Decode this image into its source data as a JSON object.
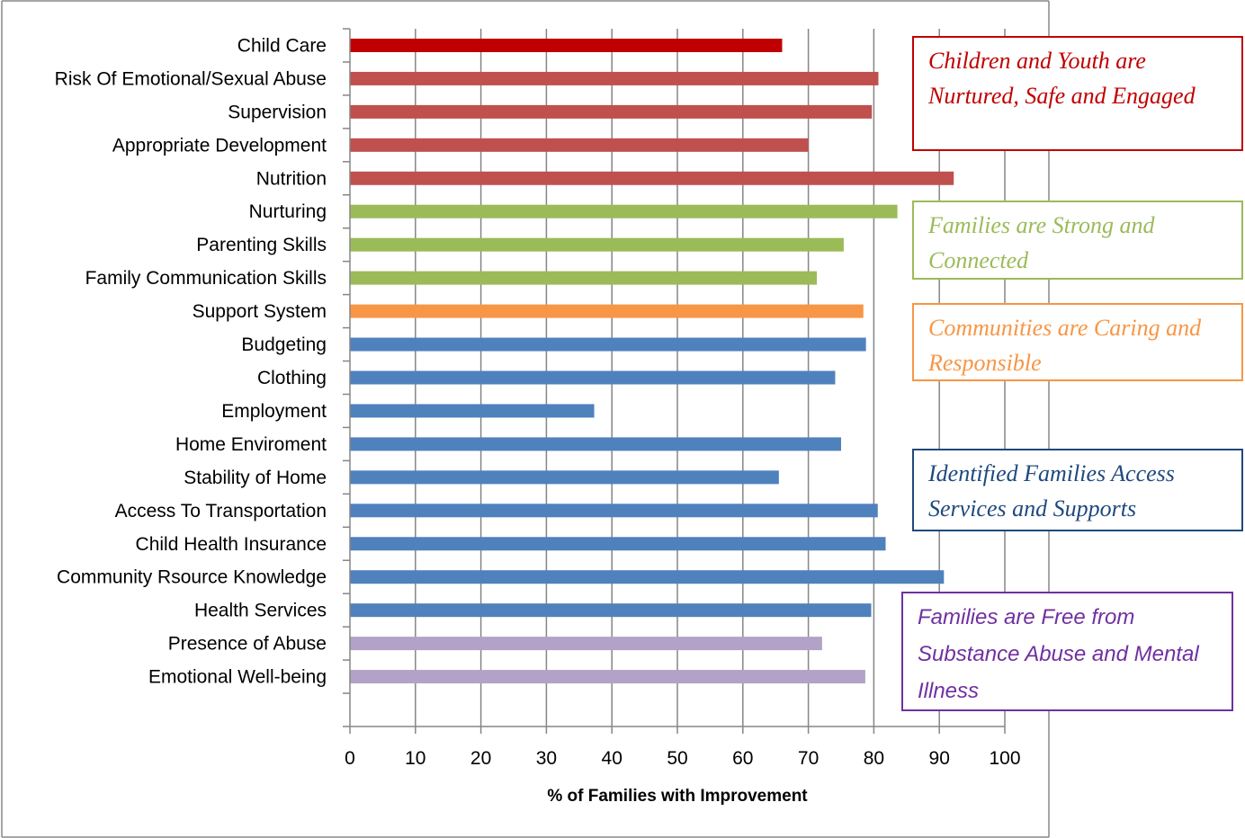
{
  "colors": {
    "children_youth": "#c0504d",
    "children_youth_highlight": "#c00000",
    "families_strong": "#9bbb59",
    "communities": "#f79646",
    "identified_families": "#4f81bd",
    "substance_abuse": "#b3a2c7",
    "box_children_youth": "#c00000",
    "box_families_strong": "#9bbb59",
    "box_communities": "#f79646",
    "box_identified_families": "#1f497d",
    "box_substance_abuse": "#7030a0"
  },
  "chart_data": {
    "type": "bar",
    "orientation": "horizontal",
    "xlabel": "% of Families with Improvement",
    "ylabel": "",
    "xlim": [
      0,
      100
    ],
    "xticks": [
      "0",
      "10",
      "20",
      "30",
      "40",
      "50",
      "60",
      "70",
      "80",
      "90",
      "100"
    ],
    "grid": "vertical",
    "categories": [
      "Child Care",
      "Risk Of Emotional/Sexual Abuse",
      "Supervision",
      "Appropriate Development",
      "Nutrition",
      "Nurturing",
      "Parenting Skills",
      "Family Communication Skills",
      "Support System",
      "Budgeting",
      "Clothing",
      "Employment",
      "Home Enviroment",
      "Stability of Home",
      "Access To Transportation",
      "Child Health Insurance",
      "Community Rsource Knowledge",
      "Health Services",
      "Presence of Abuse",
      "Emotional Well-being"
    ],
    "values": [
      66,
      80.7,
      79.7,
      70,
      92.2,
      83.6,
      75.4,
      71.3,
      78.4,
      78.8,
      74.1,
      37.3,
      75,
      65.5,
      80.6,
      81.8,
      90.7,
      79.6,
      72.1,
      78.7
    ],
    "groups": [
      "children_youth_highlight",
      "children_youth",
      "children_youth",
      "children_youth",
      "children_youth",
      "families_strong",
      "families_strong",
      "families_strong",
      "communities",
      "identified_families",
      "identified_families",
      "identified_families",
      "identified_families",
      "identified_families",
      "identified_families",
      "identified_families",
      "identified_families",
      "identified_families",
      "substance_abuse",
      "substance_abuse"
    ],
    "annotations": [
      {
        "key": "box_children_youth",
        "text": "Children and Youth are Nurtured, Safe and Engaged"
      },
      {
        "key": "box_families_strong",
        "text": "Families are Strong and Connected"
      },
      {
        "key": "box_communities",
        "text": "Communities are Caring and Responsible"
      },
      {
        "key": "box_identified_families",
        "text": "Identified Families Access Services and Supports"
      },
      {
        "key": "box_substance_abuse",
        "text": "Families are Free from Substance Abuse and Mental Illness"
      }
    ]
  }
}
